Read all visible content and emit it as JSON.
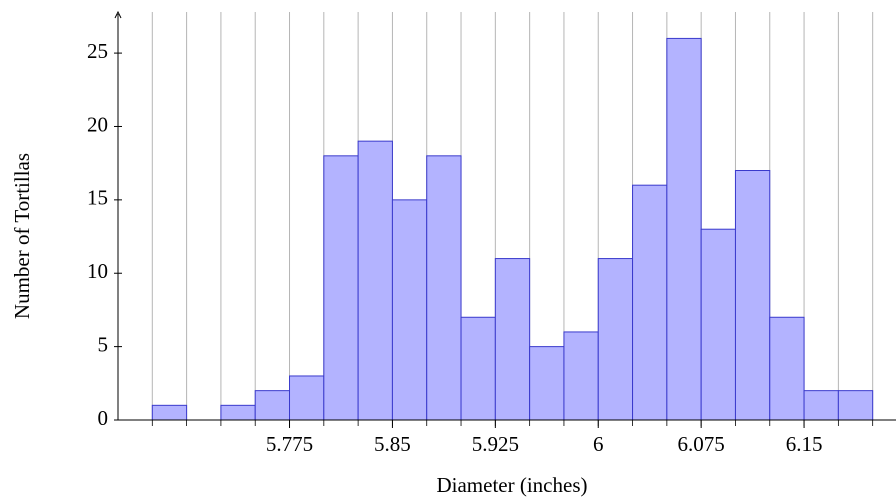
{
  "chart_data": {
    "type": "histogram",
    "xlabel": "Diameter (inches)",
    "ylabel": "Number of Tortillas",
    "bins": [
      5.675,
      5.7,
      5.725,
      5.75,
      5.775,
      5.8,
      5.825,
      5.85,
      5.875,
      5.9,
      5.925,
      5.95,
      5.975,
      6,
      6.025,
      6.05,
      6.075,
      6.1,
      6.125,
      6.15,
      6.175,
      6.2
    ],
    "values": [
      1,
      0,
      1,
      2,
      3,
      18,
      19,
      15,
      18,
      7,
      11,
      5,
      6,
      11,
      16,
      26,
      13,
      17,
      7,
      2,
      2
    ],
    "color": "#b3b3ff",
    "edge_color": "#3a3acc",
    "xlim": [
      5.65,
      6.217
    ],
    "ylim": [
      0,
      27.8
    ],
    "xticks": [
      5.775,
      5.85,
      5.925,
      6,
      6.075,
      6.15
    ],
    "yticks": [
      0,
      5,
      10,
      15,
      20,
      25
    ],
    "grid": "x"
  }
}
